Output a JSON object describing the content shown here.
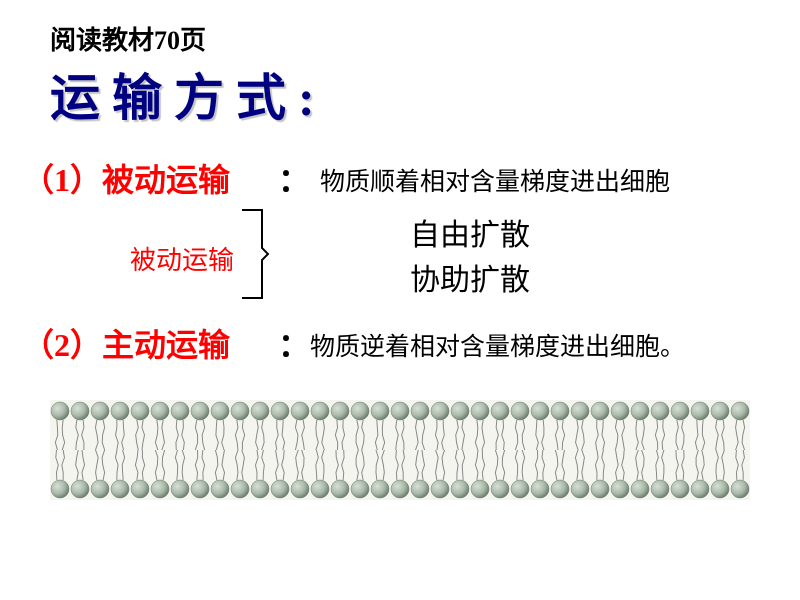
{
  "subtitle": "阅读教材70页",
  "main_title": "运输方式:",
  "item1": {
    "label": "（1）被动运输",
    "colon": "：",
    "desc": "物质顺着相对含量梯度进出细胞"
  },
  "middle_label": "被动运输",
  "sub1": "自由扩散",
  "sub2": "协助扩散",
  "item2": {
    "label": "（2）主动运输",
    "colon": "：",
    "desc": "物质逆着相对含量梯度进出细胞。"
  },
  "membrane": {
    "lipid_count": 35,
    "head_color": "#a8b8a8",
    "head_highlight": "#d8e0d8",
    "head_shadow": "#6a7a6a",
    "tail_color": "#888888",
    "background": "#f5f5f0"
  },
  "bracket": {
    "color": "#000000",
    "width": 26,
    "height": 90
  }
}
